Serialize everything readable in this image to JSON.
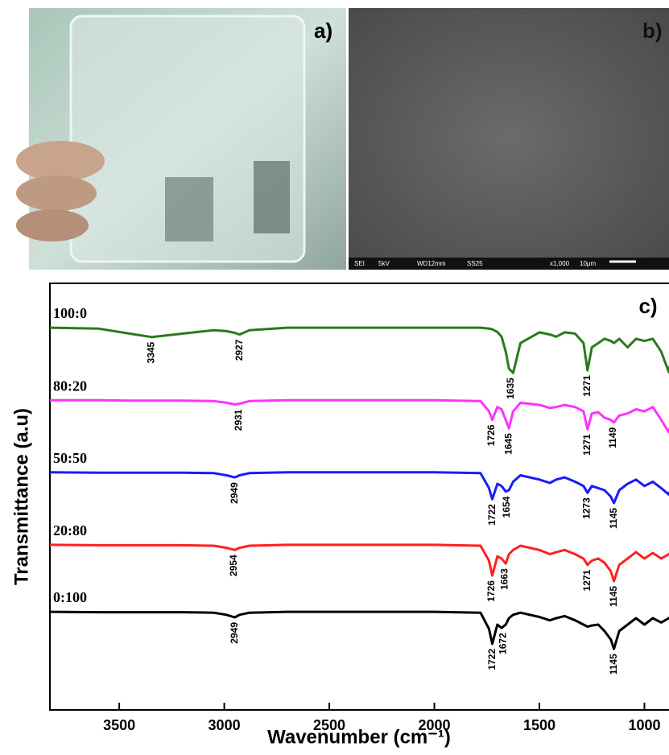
{
  "panels": {
    "a": {
      "label": "a)"
    },
    "b": {
      "label": "b)",
      "info": [
        "SEI",
        "5kV",
        "WD12mm",
        "SS25",
        "x1,000",
        "10μm"
      ]
    }
  },
  "chart_data": {
    "type": "line",
    "panel_label": "c)",
    "xlabel": "Wavenumber (cm⁻¹)",
    "ylabel": "Transmittance (a.u)",
    "xlim": [
      3830,
      860
    ],
    "xticks": [
      3500,
      3000,
      2500,
      2000,
      1500,
      1000
    ],
    "ylim": [
      0,
      100
    ],
    "x": [
      3830,
      3600,
      3450,
      3345,
      3200,
      3050,
      2990,
      2950,
      2927,
      2880,
      2700,
      2000,
      1780,
      1740,
      1724,
      1700,
      1680,
      1660,
      1645,
      1625,
      1590,
      1500,
      1450,
      1420,
      1380,
      1330,
      1290,
      1271,
      1250,
      1220,
      1190,
      1160,
      1145,
      1120,
      1080,
      1040,
      1000,
      960,
      920,
      884,
      860
    ],
    "series": [
      {
        "name": "100:0",
        "color": "#2a7a1c",
        "peaks": [
          3345,
          2927,
          1635,
          1271
        ],
        "values": [
          89.6,
          89.4,
          88.2,
          87.4,
          88.2,
          89,
          88.8,
          88.4,
          88,
          89,
          89.6,
          89.6,
          89.6,
          89.4,
          89.2,
          88.6,
          87.5,
          84,
          80,
          79,
          86,
          88.5,
          88,
          87.5,
          88.5,
          88.2,
          86,
          79.6,
          85,
          86,
          87,
          86.5,
          86,
          87,
          85,
          87,
          86.5,
          87,
          84,
          79.2,
          86
        ]
      },
      {
        "name": "80:20",
        "color": "#ff33ff",
        "peaks": [
          2931,
          1726,
          1645,
          1271,
          1149
        ],
        "values": [
          72.6,
          72.6,
          72.5,
          72.5,
          72.5,
          72.4,
          72,
          71.6,
          71.8,
          72.4,
          72.6,
          72.6,
          72.4,
          70,
          68,
          71,
          70.5,
          68,
          66,
          70,
          72,
          71.5,
          70.8,
          71,
          71.5,
          71,
          70,
          65.8,
          69.5,
          69.8,
          68.5,
          68,
          67.4,
          69,
          69.5,
          70.5,
          70,
          71,
          68,
          65.1,
          70
        ]
      },
      {
        "name": "50:50",
        "color": "#1a1aff",
        "peaks": [
          2949,
          1722,
          1654,
          1273,
          1145
        ],
        "values": [
          55.7,
          55.6,
          55.6,
          55.6,
          55.6,
          55.5,
          55,
          54.5,
          55,
          55.5,
          55.7,
          55.7,
          55.5,
          52,
          49.4,
          53,
          52.5,
          51.2,
          51.5,
          53.5,
          55,
          54,
          53.2,
          54,
          54.5,
          53.5,
          52.5,
          50.9,
          52.5,
          52,
          51.5,
          50,
          48.5,
          51.5,
          53,
          54,
          52.5,
          53.5,
          52,
          50.5,
          53.5
        ]
      },
      {
        "name": "20:80",
        "color": "#ff2020",
        "peaks": [
          2954,
          1726,
          1663,
          1271,
          1145
        ],
        "values": [
          38.7,
          38.6,
          38.6,
          38.6,
          38.6,
          38.5,
          38,
          37.5,
          38,
          38.5,
          38.7,
          38.7,
          38.5,
          35,
          31.5,
          36,
          35.5,
          34.3,
          36.5,
          37.5,
          38.5,
          37.5,
          36.5,
          37,
          37.5,
          36.5,
          35.5,
          34,
          35,
          35.5,
          34.5,
          32.5,
          30.2,
          34,
          35.5,
          37,
          35.5,
          36.8,
          35.5,
          36.5,
          37.5
        ]
      },
      {
        "name": "0:100",
        "color": "#000000",
        "peaks": [
          2949,
          1722,
          1672,
          1145
        ],
        "values": [
          23,
          22.9,
          22.9,
          22.9,
          22.9,
          22.8,
          22.3,
          21.7,
          22.3,
          22.8,
          23,
          23,
          22.8,
          19,
          15.5,
          20,
          19.2,
          20,
          21.5,
          22.3,
          22.8,
          21.8,
          21,
          21.5,
          22,
          21,
          20,
          19.5,
          19.8,
          20,
          18.5,
          16.5,
          14.3,
          18.5,
          20,
          21.5,
          20,
          21.5,
          20.5,
          21.5,
          22
        ]
      }
    ]
  }
}
